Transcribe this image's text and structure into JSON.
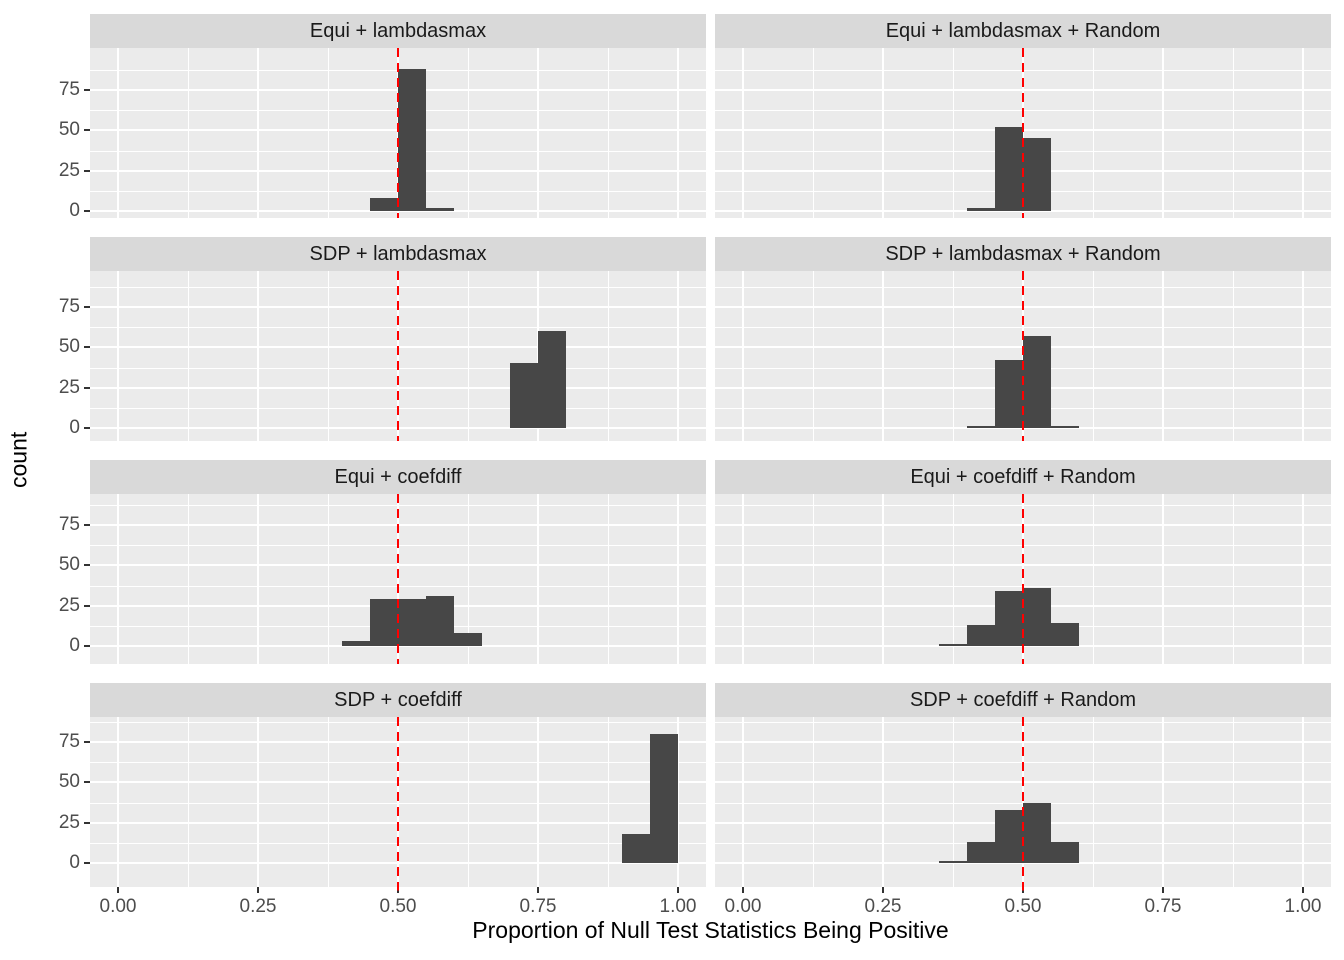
{
  "figure": {
    "background": "#ffffff",
    "panel_bg": "#ebebeb",
    "strip_bg": "#d9d9d9",
    "grid_color": "#ffffff",
    "bar_color": "#474747",
    "reference_line_color": "#ff0000",
    "axis_text_color": "#4d4d4d",
    "strip_text_color": "#1a1a1a"
  },
  "chart_data": {
    "type": "bar",
    "subtype": "faceted-histogram",
    "title": "",
    "xlabel": "Proportion of Null Test Statistics Being Positive",
    "ylabel": "count",
    "grid": true,
    "legend": "none",
    "facet_layout": {
      "rows": 4,
      "cols": 2
    },
    "xlim": [
      -0.05,
      1.05
    ],
    "ylim": [
      0,
      100
    ],
    "x_ticks": [
      "0.00",
      "0.25",
      "0.50",
      "0.75",
      "1.00"
    ],
    "x_tick_values": [
      0,
      0.25,
      0.5,
      0.75,
      1.0
    ],
    "y_ticks": [
      "0",
      "25",
      "50",
      "75"
    ],
    "y_tick_values": [
      0,
      25,
      50,
      75
    ],
    "bin_width": 0.05,
    "reference_line_x": 0.5,
    "facets": [
      {
        "label": "Equi + lambdasmax",
        "bins": [
          {
            "x0": 0.45,
            "count": 8
          },
          {
            "x0": 0.5,
            "count": 88
          },
          {
            "x0": 0.55,
            "count": 2
          }
        ]
      },
      {
        "label": "Equi + lambdasmax + Random",
        "bins": [
          {
            "x0": 0.4,
            "count": 2
          },
          {
            "x0": 0.45,
            "count": 52
          },
          {
            "x0": 0.5,
            "count": 45
          }
        ]
      },
      {
        "label": "SDP + lambdasmax",
        "bins": [
          {
            "x0": 0.7,
            "count": 40
          },
          {
            "x0": 0.75,
            "count": 60
          }
        ]
      },
      {
        "label": "SDP + lambdasmax + Random",
        "bins": [
          {
            "x0": 0.4,
            "count": 1
          },
          {
            "x0": 0.45,
            "count": 42
          },
          {
            "x0": 0.5,
            "count": 57
          },
          {
            "x0": 0.55,
            "count": 1
          }
        ]
      },
      {
        "label": "Equi + coefdiff",
        "bins": [
          {
            "x0": 0.4,
            "count": 3
          },
          {
            "x0": 0.45,
            "count": 29
          },
          {
            "x0": 0.5,
            "count": 29
          },
          {
            "x0": 0.55,
            "count": 31
          },
          {
            "x0": 0.6,
            "count": 8
          }
        ]
      },
      {
        "label": "Equi + coefdiff + Random",
        "bins": [
          {
            "x0": 0.35,
            "count": 1
          },
          {
            "x0": 0.4,
            "count": 13
          },
          {
            "x0": 0.45,
            "count": 34
          },
          {
            "x0": 0.5,
            "count": 36
          },
          {
            "x0": 0.55,
            "count": 14
          }
        ]
      },
      {
        "label": "SDP + coefdiff",
        "bins": [
          {
            "x0": 0.9,
            "count": 18
          },
          {
            "x0": 0.95,
            "count": 80
          }
        ]
      },
      {
        "label": "SDP + coefdiff + Random",
        "bins": [
          {
            "x0": 0.35,
            "count": 1
          },
          {
            "x0": 0.4,
            "count": 13
          },
          {
            "x0": 0.45,
            "count": 33
          },
          {
            "x0": 0.5,
            "count": 37
          },
          {
            "x0": 0.55,
            "count": 13
          }
        ]
      }
    ]
  }
}
